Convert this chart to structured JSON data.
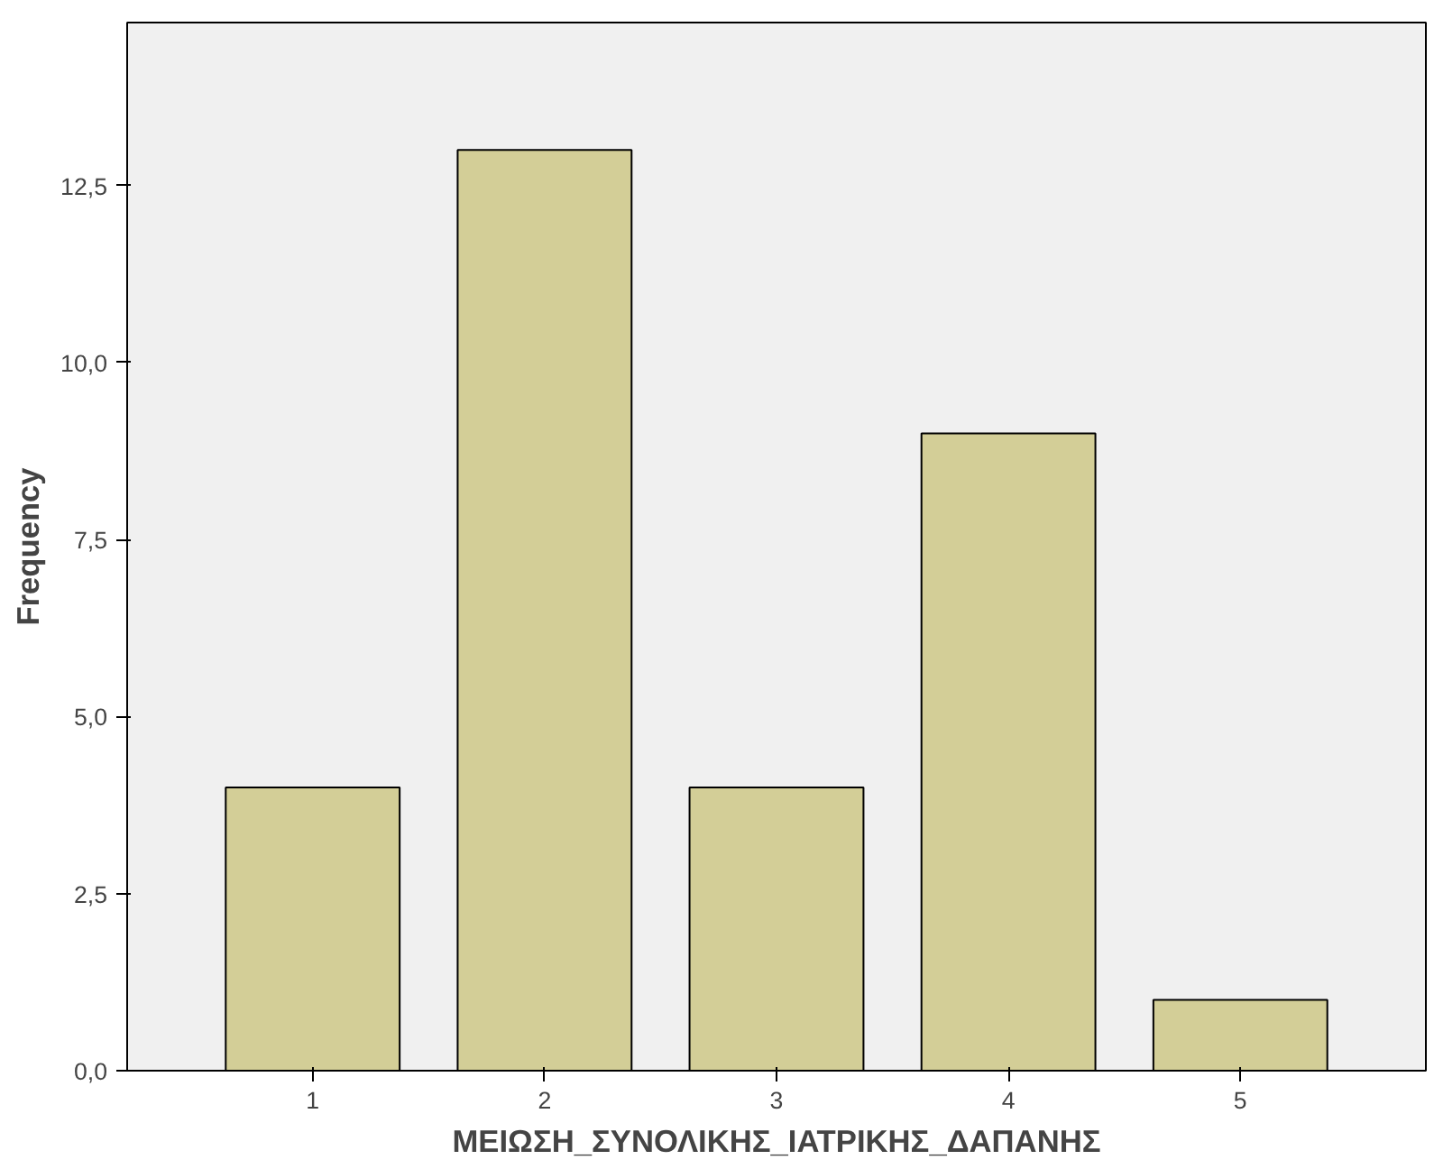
{
  "chart_data": {
    "type": "bar",
    "xlabel": "ΜΕΙΩΣΗ_ΣΥΝΟΛΙΚΗΣ_ΙΑΤΡΙΚΗΣ_ΔΑΠΑΝΗΣ",
    "ylabel": "Frequency",
    "categories": [
      "1",
      "2",
      "3",
      "4",
      "5"
    ],
    "values": [
      4,
      13,
      4,
      9,
      1
    ],
    "color": "#d3ce97",
    "ylim": [
      0,
      14.8
    ],
    "yticks": [
      {
        "value": 0,
        "label": "0,0"
      },
      {
        "value": 2.5,
        "label": "2,5"
      },
      {
        "value": 5,
        "label": "5,0"
      },
      {
        "value": 7.5,
        "label": "7,5"
      },
      {
        "value": 10,
        "label": "10,0"
      },
      {
        "value": 12.5,
        "label": "12,5"
      }
    ],
    "grid": false
  }
}
